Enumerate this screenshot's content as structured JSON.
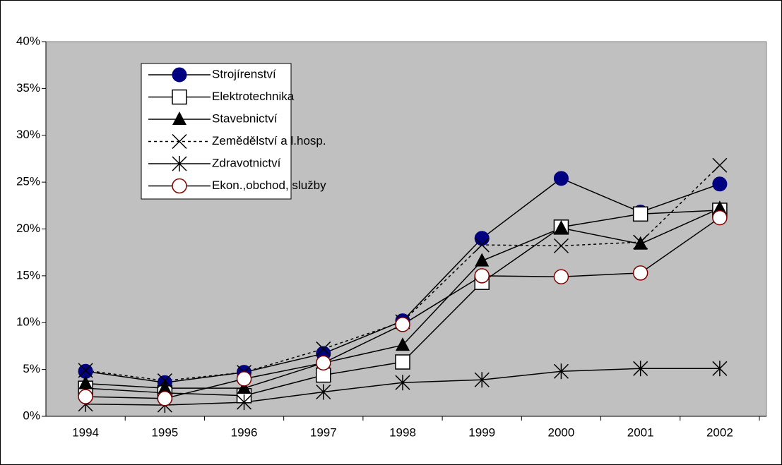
{
  "chart_data": {
    "type": "line",
    "categories": [
      "1994",
      "1995",
      "1996",
      "1997",
      "1998",
      "1999",
      "2000",
      "2001",
      "2002"
    ],
    "ylim": [
      0,
      40
    ],
    "yticks": [
      {
        "value": 0,
        "label": "0%"
      },
      {
        "value": 5,
        "label": "5%"
      },
      {
        "value": 10,
        "label": "10%"
      },
      {
        "value": 15,
        "label": "15%"
      },
      {
        "value": 20,
        "label": "20%"
      },
      {
        "value": 25,
        "label": "25%"
      },
      {
        "value": 30,
        "label": "30%"
      },
      {
        "value": 35,
        "label": "35%"
      },
      {
        "value": 40,
        "label": "40%"
      }
    ],
    "grid": false,
    "legend": "upper left",
    "series": [
      {
        "name": "Strojírenství",
        "color": "#000080",
        "marker": "circle",
        "values": [
          4.8,
          3.6,
          4.7,
          6.7,
          10.2,
          19.0,
          25.4,
          21.8,
          24.8
        ]
      },
      {
        "name": "Elektrotechnika",
        "color": "#000000",
        "marker": "square",
        "values": [
          3.0,
          2.5,
          2.2,
          4.4,
          5.8,
          14.3,
          20.2,
          21.6,
          22.0
        ]
      },
      {
        "name": "Stavebnictví",
        "color": "#000000",
        "marker": "triangle",
        "values": [
          3.5,
          3.0,
          3.0,
          5.7,
          7.6,
          16.6,
          20.1,
          18.4,
          22.2
        ]
      },
      {
        "name": "Zemědělství a l.hosp.",
        "color": "#000000",
        "marker": "x",
        "dashed": true,
        "values": [
          4.9,
          3.8,
          4.7,
          7.2,
          10.1,
          18.3,
          18.2,
          18.6,
          26.8
        ]
      },
      {
        "name": "Zdravotnictví",
        "color": "#000000",
        "marker": "asterisk",
        "values": [
          1.3,
          1.2,
          1.5,
          2.6,
          3.6,
          3.9,
          4.8,
          5.1,
          5.1
        ]
      },
      {
        "name": "Ekon.,obchod, služby",
        "color": "#800000",
        "marker": "hollow-circle",
        "values": [
          2.1,
          1.9,
          4.0,
          5.7,
          9.8,
          15.0,
          14.9,
          15.3,
          21.2
        ]
      }
    ]
  }
}
